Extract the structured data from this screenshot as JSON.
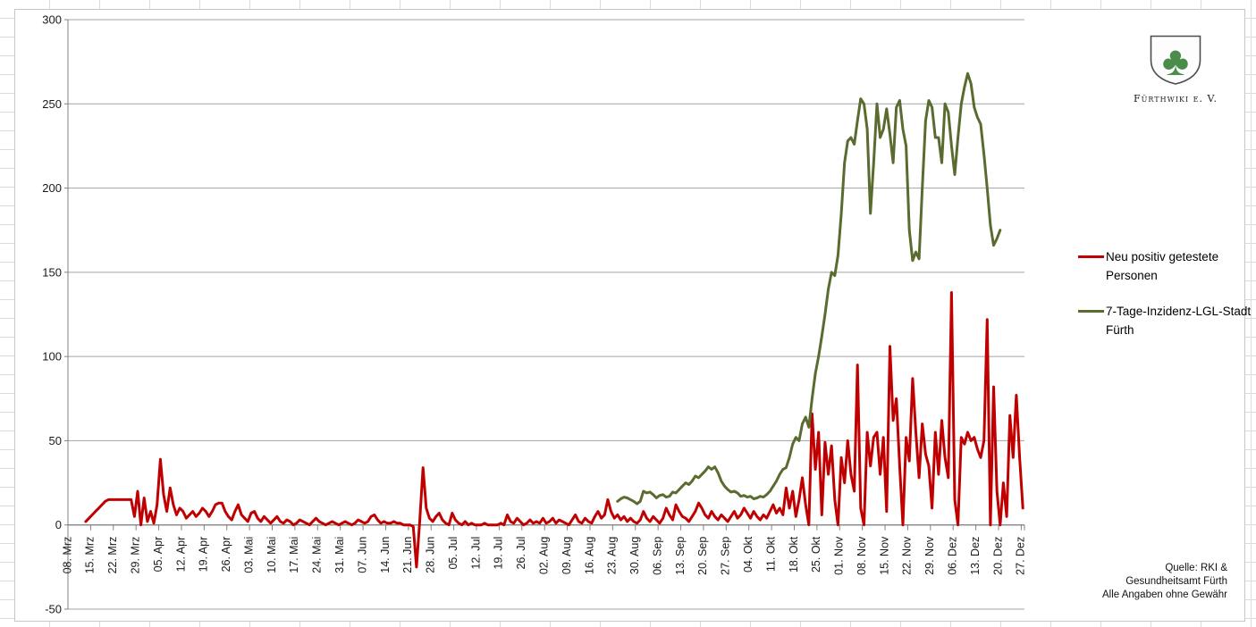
{
  "chart_data": {
    "type": "line",
    "title": "",
    "xlabel": "",
    "ylabel": "",
    "ylim": [
      -50,
      300
    ],
    "y_ticks": [
      300,
      250,
      200,
      150,
      100,
      50,
      0,
      -50
    ],
    "grid": true,
    "legend_position": "right",
    "num_days": 295,
    "x_tick_labels": [
      "08. Mrz",
      "15. Mrz",
      "22. Mrz",
      "29. Mrz",
      "05. Apr",
      "12. Apr",
      "19. Apr",
      "26. Apr",
      "03. Mai",
      "10. Mai",
      "17. Mai",
      "24. Mai",
      "31. Mai",
      "07. Jun",
      "14. Jun",
      "21. Jun",
      "28. Jun",
      "05. Jul",
      "12. Jul",
      "19. Jul",
      "26. Jul",
      "02. Aug",
      "09. Aug",
      "16. Aug",
      "23. Aug",
      "30. Aug",
      "06. Sep",
      "13. Sep",
      "20. Sep",
      "27. Sep",
      "04. Okt",
      "11. Okt",
      "18. Okt",
      "25. Okt",
      "01. Nov",
      "08. Nov",
      "15. Nov",
      "22. Nov",
      "29. Nov",
      "06. Dez",
      "13. Dez",
      "20. Dez",
      "27. Dez"
    ],
    "series": [
      {
        "name": "Neu positiv getestete Personen",
        "color": "#C00000",
        "start_day": 5,
        "values": [
          2,
          4,
          6,
          8,
          10,
          12,
          14,
          15,
          15,
          15,
          15,
          15,
          15,
          15,
          15,
          5,
          20,
          0,
          16,
          2,
          8,
          1,
          12,
          39,
          18,
          8,
          22,
          12,
          6,
          10,
          8,
          4,
          6,
          8,
          5,
          7,
          10,
          8,
          5,
          8,
          12,
          13,
          13,
          8,
          5,
          3,
          8,
          12,
          6,
          4,
          2,
          7,
          8,
          4,
          2,
          5,
          3,
          1,
          3,
          5,
          2,
          1,
          3,
          2,
          0,
          1,
          3,
          2,
          1,
          0,
          2,
          4,
          2,
          1,
          0,
          1,
          2,
          1,
          0,
          1,
          2,
          1,
          0,
          1,
          3,
          2,
          1,
          2,
          5,
          6,
          3,
          1,
          2,
          1,
          1,
          2,
          1,
          1,
          0,
          0,
          0,
          -1,
          -25,
          2,
          34,
          10,
          4,
          2,
          5,
          7,
          3,
          1,
          0,
          7,
          3,
          1,
          0,
          2,
          0,
          1,
          0,
          0,
          0,
          1,
          0,
          0,
          0,
          0,
          1,
          0,
          6,
          2,
          1,
          4,
          2,
          0,
          1,
          3,
          1,
          2,
          1,
          4,
          1,
          2,
          4,
          1,
          3,
          2,
          1,
          0,
          3,
          6,
          2,
          1,
          4,
          2,
          1,
          5,
          8,
          4,
          6,
          15,
          8,
          4,
          6,
          3,
          5,
          2,
          4,
          2,
          1,
          3,
          8,
          4,
          2,
          5,
          3,
          1,
          4,
          10,
          6,
          3,
          12,
          8,
          5,
          4,
          2,
          5,
          8,
          13,
          10,
          6,
          4,
          8,
          5,
          3,
          6,
          4,
          2,
          5,
          8,
          4,
          6,
          10,
          7,
          4,
          8,
          5,
          3,
          6,
          4,
          8,
          12,
          7,
          10,
          6,
          22,
          10,
          20,
          5,
          15,
          28,
          12,
          0,
          66,
          33,
          55,
          6,
          49,
          30,
          47,
          15,
          0,
          40,
          25,
          50,
          30,
          20,
          95,
          10,
          0,
          55,
          35,
          52,
          55,
          30,
          52,
          8,
          106,
          62,
          75,
          35,
          0,
          52,
          38,
          87,
          55,
          28,
          60,
          42,
          35,
          10,
          55,
          30,
          62,
          40,
          28,
          138,
          15,
          0,
          52,
          48,
          55,
          50,
          52,
          45,
          40,
          50,
          122,
          0,
          82,
          20,
          0,
          25,
          5,
          65,
          40,
          77,
          40,
          10
        ]
      },
      {
        "name": "7-Tage-Inzidenz-LGL-Stadt Fürth",
        "color": "#5A6B2F",
        "start_day": 169,
        "values": [
          14,
          15.5,
          16.5,
          16,
          15,
          14,
          12.5,
          14,
          20,
          19,
          19.5,
          18,
          16,
          17.5,
          18,
          16.5,
          17,
          19.5,
          19,
          21,
          23,
          25,
          24,
          26,
          29,
          28,
          30,
          32,
          34.5,
          33,
          34.5,
          31,
          26,
          23,
          21,
          19.5,
          20,
          19,
          17,
          17.5,
          16.5,
          17,
          15.5,
          16,
          17,
          16.5,
          18,
          20,
          23,
          26,
          30,
          33,
          34,
          40,
          48,
          52,
          50,
          60,
          64,
          58,
          75,
          90,
          100,
          112,
          125,
          140,
          150,
          148,
          160,
          185,
          215,
          228,
          230,
          226,
          240,
          253,
          250,
          235,
          185,
          215,
          250,
          230,
          235,
          247,
          232,
          215,
          248,
          252,
          235,
          225,
          175,
          157,
          162,
          158,
          200,
          240,
          252,
          248,
          230,
          230,
          215,
          250,
          245,
          225,
          208,
          230,
          250,
          260,
          268,
          262,
          248,
          242,
          238,
          220,
          200,
          178,
          166,
          170,
          175
        ]
      }
    ]
  },
  "logo": {
    "caption": "Fürthwiki e. V.",
    "shamrock_color": "#4A8C4A"
  },
  "source_note": "Quelle: RKI &\nGesundheitsamt Fürth\nAlle Angaben ohne Gewähr"
}
